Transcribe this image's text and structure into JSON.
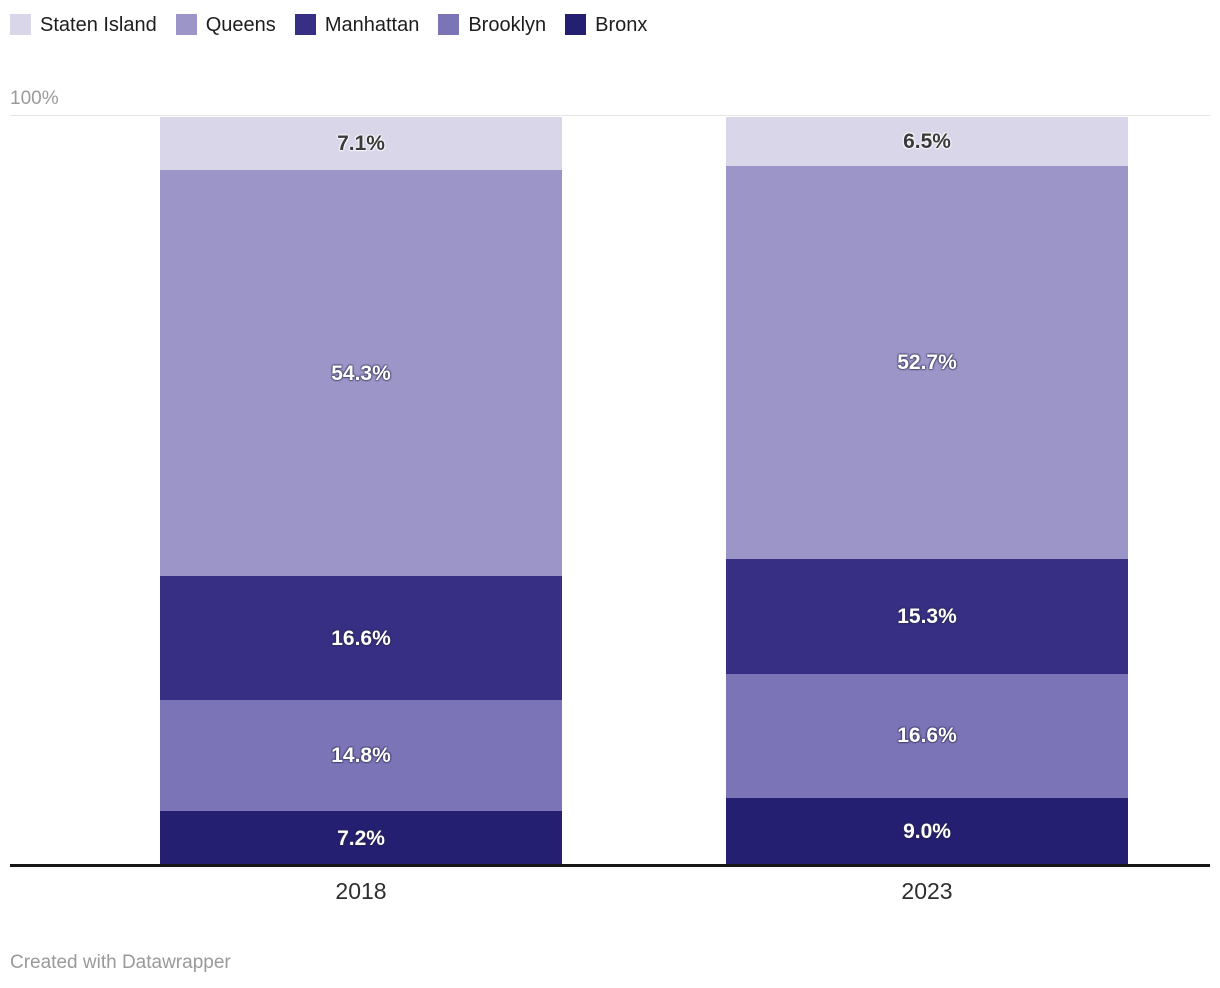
{
  "axis": {
    "top_tick_label": "100%"
  },
  "footer": {
    "text": "Created with Datawrapper"
  },
  "chart_data": {
    "type": "bar",
    "subtype": "stacked-percentage-column",
    "title": "",
    "xlabel": "",
    "ylabel": "",
    "ylim": [
      0,
      100
    ],
    "y_tick_labels": [
      "100%"
    ],
    "grid": "top-line-only",
    "legend_position": "top",
    "value_suffix": "%",
    "categories": [
      "2018",
      "2023"
    ],
    "series": [
      {
        "name": "Staten Island",
        "color": "#d9d6e9",
        "label_style": "dark",
        "values": [
          7.1,
          6.5
        ]
      },
      {
        "name": "Queens",
        "color": "#9c95c7",
        "label_style": "light",
        "values": [
          54.3,
          52.7
        ]
      },
      {
        "name": "Manhattan",
        "color": "#372f83",
        "label_style": "light",
        "values": [
          16.6,
          15.3
        ]
      },
      {
        "name": "Brooklyn",
        "color": "#7b74b6",
        "label_style": "light",
        "values": [
          14.8,
          16.6
        ]
      },
      {
        "name": "Bronx",
        "color": "#241f70",
        "label_style": "light",
        "values": [
          7.2,
          9.0
        ]
      }
    ]
  }
}
